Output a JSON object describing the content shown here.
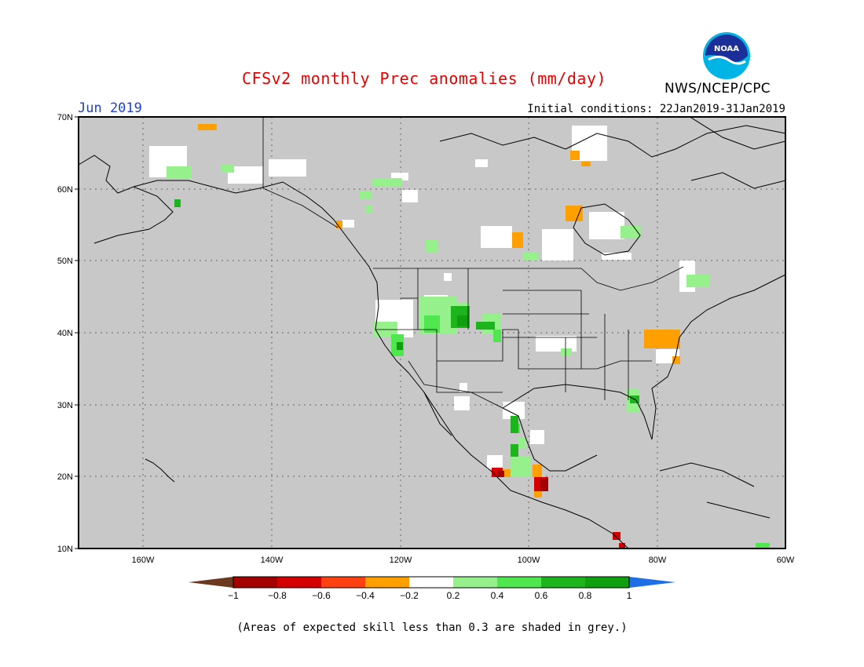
{
  "header": {
    "title": "CFSv2 monthly Prec anomalies (mm/day)",
    "period": "Jun 2019",
    "initial_conditions": "Initial conditions: 22Jan2019-31Jan2019",
    "agency": "NWS/NCEP/CPC",
    "logo_text": "NOAA"
  },
  "map": {
    "lat_labels": [
      "70N",
      "60N",
      "50N",
      "40N",
      "30N",
      "20N",
      "10N"
    ],
    "lon_labels": [
      "160W",
      "140W",
      "120W",
      "100W",
      "80W",
      "60W"
    ],
    "background_color": "#c8c8c8",
    "regions": [
      {
        "name": "California / Nevada",
        "category": "white"
      },
      {
        "name": "Great Basin / Rockies",
        "category": "light-green"
      },
      {
        "name": "Colorado",
        "category": "dark-green"
      },
      {
        "name": "Mid-Atlantic",
        "category": "orange"
      },
      {
        "name": "Southern Mexico",
        "category": "red"
      },
      {
        "name": "Sierra Madre",
        "category": "green"
      }
    ]
  },
  "legend": {
    "tick_labels": [
      "−1",
      "−0.8",
      "−0.6",
      "−0.4",
      "−0.2",
      "0.2",
      "0.4",
      "0.6",
      "0.8",
      "1"
    ],
    "colors": [
      "#6b3a1e",
      "#a50000",
      "#d40000",
      "#ff4010",
      "#ffa000",
      "#ffffff",
      "#96f08c",
      "#50e650",
      "#1eb41e",
      "#0f9f0f",
      "#1e6ee6"
    ],
    "footnote": "(Areas of expected skill less than 0.3 are shaded in grey.)"
  }
}
